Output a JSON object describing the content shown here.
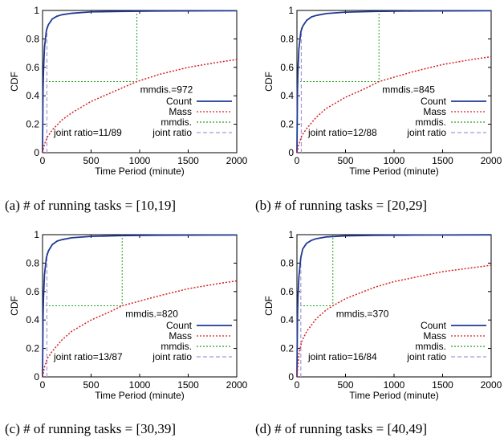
{
  "chart_data": [
    {
      "type": "line",
      "caption": "(a) # of running tasks = [10,19]",
      "xlabel": "Time Period (minute)",
      "ylabel": "CDF",
      "xlim": [
        0,
        2000
      ],
      "ylim": [
        0,
        1
      ],
      "xticks": [
        0,
        500,
        1000,
        1500,
        2000
      ],
      "yticks": [
        0,
        0.2,
        0.4,
        0.6,
        0.8,
        1
      ],
      "legend_position": "bottom-right",
      "mmdis": 972,
      "mmdis_label": "mmdis.=972",
      "joint_ratio_label": "joint ratio=11/89",
      "joint_x": 45,
      "joint_y": 0.89,
      "series": [
        {
          "name": "Count",
          "color": "#1f3a93",
          "style": "solid",
          "x": [
            0,
            5,
            10,
            20,
            40,
            60,
            100,
            150,
            200,
            300,
            500,
            800,
            1200,
            2000
          ],
          "y": [
            0,
            0.42,
            0.58,
            0.74,
            0.86,
            0.9,
            0.94,
            0.96,
            0.97,
            0.98,
            0.99,
            0.993,
            0.996,
            0.998
          ]
        },
        {
          "name": "Mass",
          "color": "#d62020",
          "style": "dotted",
          "x": [
            0,
            20,
            50,
            100,
            200,
            300,
            500,
            700,
            972,
            1200,
            1500,
            1800,
            2000
          ],
          "y": [
            0,
            0.06,
            0.11,
            0.16,
            0.23,
            0.28,
            0.36,
            0.42,
            0.5,
            0.55,
            0.6,
            0.635,
            0.655
          ]
        },
        {
          "name": "mmdis.",
          "color": "#22a022",
          "style": "dotted"
        },
        {
          "name": "joint ratio",
          "color": "#a898d8",
          "style": "dashed"
        }
      ]
    },
    {
      "type": "line",
      "caption": "(b) # of running tasks = [20,29]",
      "xlabel": "Time Period (minute)",
      "ylabel": "CDF",
      "xlim": [
        0,
        2000
      ],
      "ylim": [
        0,
        1
      ],
      "xticks": [
        0,
        500,
        1000,
        1500,
        2000
      ],
      "yticks": [
        0,
        0.2,
        0.4,
        0.6,
        0.8,
        1
      ],
      "legend_position": "bottom-right",
      "mmdis": 845,
      "mmdis_label": "mmdis.=845",
      "joint_ratio_label": "joint ratio=12/88",
      "joint_x": 45,
      "joint_y": 0.88,
      "series": [
        {
          "name": "Count",
          "color": "#1f3a93",
          "style": "solid",
          "x": [
            0,
            5,
            10,
            20,
            40,
            60,
            100,
            150,
            200,
            300,
            500,
            800,
            1200,
            2000
          ],
          "y": [
            0,
            0.42,
            0.57,
            0.73,
            0.85,
            0.89,
            0.93,
            0.955,
            0.965,
            0.978,
            0.988,
            0.993,
            0.996,
            0.998
          ]
        },
        {
          "name": "Mass",
          "color": "#d62020",
          "style": "dotted",
          "x": [
            0,
            20,
            50,
            100,
            200,
            300,
            500,
            700,
            845,
            1200,
            1500,
            1800,
            2000
          ],
          "y": [
            0,
            0.06,
            0.12,
            0.17,
            0.25,
            0.31,
            0.39,
            0.45,
            0.5,
            0.57,
            0.62,
            0.655,
            0.675
          ]
        },
        {
          "name": "mmdis.",
          "color": "#22a022",
          "style": "dotted"
        },
        {
          "name": "joint ratio",
          "color": "#a898d8",
          "style": "dashed"
        }
      ]
    },
    {
      "type": "line",
      "caption": "(c) # of running tasks = [30,39]",
      "xlabel": "Time Period (minute)",
      "ylabel": "CDF",
      "xlim": [
        0,
        2000
      ],
      "ylim": [
        0,
        1
      ],
      "xticks": [
        0,
        500,
        1000,
        1500,
        2000
      ],
      "yticks": [
        0,
        0.2,
        0.4,
        0.6,
        0.8,
        1
      ],
      "legend_position": "bottom-right",
      "mmdis": 820,
      "mmdis_label": "mmdis.=820",
      "joint_ratio_label": "joint ratio=13/87",
      "joint_x": 45,
      "joint_y": 0.87,
      "series": [
        {
          "name": "Count",
          "color": "#1f3a93",
          "style": "solid",
          "x": [
            0,
            5,
            10,
            20,
            40,
            60,
            100,
            150,
            200,
            300,
            500,
            800,
            1200,
            2000
          ],
          "y": [
            0,
            0.41,
            0.56,
            0.72,
            0.84,
            0.885,
            0.93,
            0.955,
            0.965,
            0.978,
            0.988,
            0.993,
            0.996,
            0.998
          ]
        },
        {
          "name": "Mass",
          "color": "#d62020",
          "style": "dotted",
          "x": [
            0,
            20,
            50,
            100,
            200,
            300,
            500,
            700,
            820,
            1200,
            1500,
            1800,
            2000
          ],
          "y": [
            0,
            0.07,
            0.13,
            0.18,
            0.26,
            0.32,
            0.4,
            0.46,
            0.5,
            0.57,
            0.62,
            0.655,
            0.675
          ]
        },
        {
          "name": "mmdis.",
          "color": "#22a022",
          "style": "dotted"
        },
        {
          "name": "joint ratio",
          "color": "#a898d8",
          "style": "dashed"
        }
      ]
    },
    {
      "type": "line",
      "caption": "(d) # of running tasks = [40,49]",
      "xlabel": "Time Period (minute)",
      "ylabel": "CDF",
      "xlim": [
        0,
        2000
      ],
      "ylim": [
        0,
        1
      ],
      "xticks": [
        0,
        500,
        1000,
        1500,
        2000
      ],
      "yticks": [
        0,
        0.2,
        0.4,
        0.6,
        0.8,
        1
      ],
      "legend_position": "bottom-right",
      "mmdis": 370,
      "mmdis_label": "mmdis.=370",
      "joint_ratio_label": "joint ratio=16/84",
      "joint_x": 40,
      "joint_y": 0.84,
      "series": [
        {
          "name": "Count",
          "color": "#1f3a93",
          "style": "solid",
          "x": [
            0,
            5,
            10,
            20,
            40,
            60,
            100,
            150,
            200,
            300,
            500,
            800,
            1200,
            2000
          ],
          "y": [
            0,
            0.4,
            0.55,
            0.7,
            0.84,
            0.9,
            0.94,
            0.96,
            0.972,
            0.984,
            0.992,
            0.995,
            0.997,
            0.999
          ]
        },
        {
          "name": "Mass",
          "color": "#d62020",
          "style": "dotted",
          "x": [
            0,
            20,
            50,
            100,
            200,
            300,
            370,
            500,
            800,
            1000,
            1500,
            2000
          ],
          "y": [
            0,
            0.16,
            0.25,
            0.32,
            0.41,
            0.47,
            0.5,
            0.55,
            0.63,
            0.67,
            0.74,
            0.785
          ]
        },
        {
          "name": "mmdis.",
          "color": "#22a022",
          "style": "dotted"
        },
        {
          "name": "joint ratio",
          "color": "#a898d8",
          "style": "dashed"
        }
      ]
    }
  ]
}
